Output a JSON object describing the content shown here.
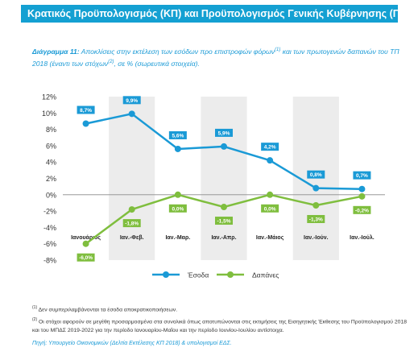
{
  "header": {
    "title": "Κρατικός Προϋπολογισμός (ΚΠ) και Προϋπολογισμός Γενικής Κυβέρνησης (ΓΚ)"
  },
  "caption": {
    "label": "Διάγραμμα 11:",
    "text_a": " Αποκλίσεις στην εκτέλεση των εσόδων προ επιστροφών φόρων",
    "sup1": "(1)",
    "text_b": " και των πρωτογενών δαπανών του ΤΠ 2018 (έναντι των στόχων",
    "sup2": "(2)",
    "text_c": ", σε % (σωρευτικά στοιχεία)."
  },
  "notes": {
    "n1_mark": "(1)",
    "n1": " Δεν συμπεριλαμβάνονται τα έσοδα αποκρατικοποιήσεων.",
    "n2_mark": "(2)",
    "n2": " Οι στόχοι αφορούν σε μεγέθη προσαρμοσμένα στα συνολικά όπως αποτυπώνονται στις εκτιμήσεις της Εισηγητικής Έκθεσης του Προϋπολογισμού 2018 και του ΜΠΔΣ 2019-2022 για την περίοδο Ιανουαρίου-Μαΐου και την περίοδο Ιουνίου-Ιουλίου αντίστοιχα."
  },
  "source": "Πηγή: Υπουργείο Οικονομικών (Δελτία Εκτέλεσης ΚΠ 2018) & υπολογισμοί ΕΔΣ.",
  "chart_data": {
    "type": "line",
    "categories": [
      "Ιανουάριος",
      "Ιαν.-Φεβ.",
      "Ιαν.-Μαρ.",
      "Ιαν.-Απρ.",
      "Ιαν.-Μάιος",
      "Ιαν.-Ιούν.",
      "Ιαν.-Ιούλ."
    ],
    "series": [
      {
        "name": "Έσοδα",
        "color": "#1a9ad6",
        "values": [
          8.7,
          9.9,
          5.6,
          5.9,
          4.2,
          0.8,
          0.7
        ],
        "labels": [
          "8,7%",
          "9,9%",
          "5,6%",
          "5,9%",
          "4,2%",
          "0,8%",
          "0,7%"
        ]
      },
      {
        "name": "Δαπάνες",
        "color": "#7fbe3e",
        "values": [
          -6.0,
          -1.8,
          0.0,
          -1.5,
          0.0,
          -1.3,
          -0.2
        ],
        "labels": [
          "-6,0%",
          "-1,8%",
          "0,0%",
          "-1,5%",
          "0,0%",
          "-1,3%",
          "-0,2%"
        ]
      }
    ],
    "yticks": [
      "12%",
      "10%",
      "8%",
      "6%",
      "4%",
      "2%",
      "0%",
      "-2%",
      "-4%",
      "-6%",
      "-8%"
    ],
    "ylim": [
      -8,
      12
    ],
    "legend": "bottom"
  }
}
